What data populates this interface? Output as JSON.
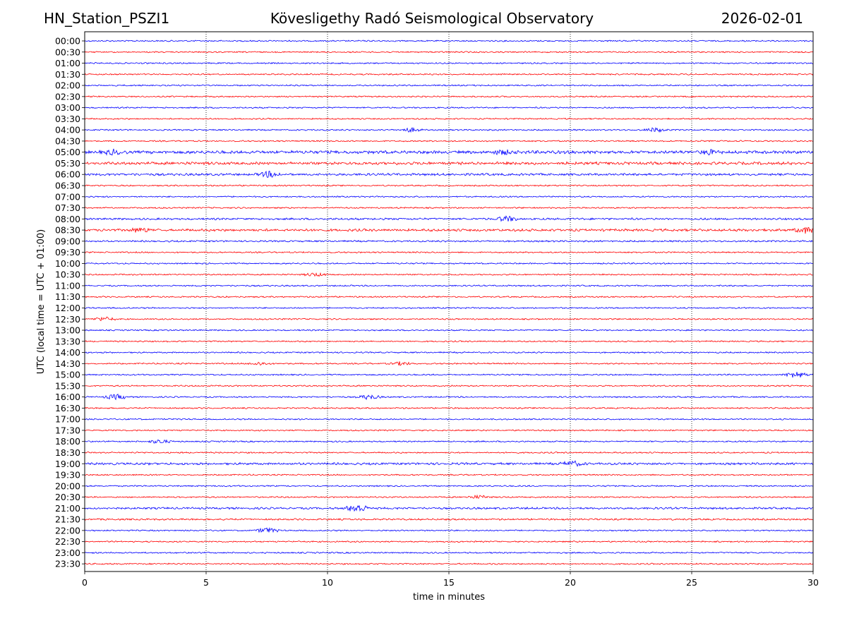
{
  "header": {
    "station": "HN_Station_PSZI1",
    "observatory": "Kövesligethy Radó Seismological Observatory",
    "date": "2026-02-01"
  },
  "chart_data": {
    "type": "line",
    "title": "Kövesligethy Radó Seismological Observatory",
    "xlabel": "time in minutes",
    "ylabel": "UTC (local time = UTC + 01:00)",
    "xlim": [
      0,
      30
    ],
    "x_ticks": [
      0,
      5,
      10,
      15,
      20,
      25,
      30
    ],
    "grid_x": true,
    "colors": [
      "#0000ff",
      "#ff0000"
    ],
    "rows": [
      "00:00",
      "00:30",
      "01:00",
      "01:30",
      "02:00",
      "02:30",
      "03:00",
      "03:30",
      "04:00",
      "04:30",
      "05:00",
      "05:30",
      "06:00",
      "06:30",
      "07:00",
      "07:30",
      "08:00",
      "08:30",
      "09:00",
      "09:30",
      "10:00",
      "10:30",
      "11:00",
      "11:30",
      "12:00",
      "12:30",
      "13:00",
      "13:30",
      "14:00",
      "14:30",
      "15:00",
      "15:30",
      "16:00",
      "16:30",
      "17:00",
      "17:30",
      "18:00",
      "18:30",
      "19:00",
      "19:30",
      "20:00",
      "20:30",
      "21:00",
      "21:30",
      "22:00",
      "22:30",
      "23:00",
      "23:30"
    ],
    "noise_level": [
      1,
      1,
      1,
      1,
      1,
      1,
      1,
      1,
      1,
      1,
      2.2,
      2,
      1.6,
      1,
      1,
      1,
      1.4,
      1.8,
      1.2,
      1,
      1,
      1,
      1,
      1,
      1,
      1,
      1,
      1,
      1,
      1,
      1,
      1,
      1,
      1,
      1,
      1,
      1,
      1,
      1.6,
      1,
      1,
      1,
      1.4,
      1.2,
      1,
      1,
      1,
      1
    ],
    "events": [
      {
        "row": "04:00",
        "minute": 13.4,
        "amplitude": 3
      },
      {
        "row": "04:00",
        "minute": 23.5,
        "amplitude": 3
      },
      {
        "row": "05:00",
        "minute": 1.2,
        "amplitude": 3
      },
      {
        "row": "05:00",
        "minute": 17.2,
        "amplitude": 3
      },
      {
        "row": "05:00",
        "minute": 25.7,
        "amplitude": 3
      },
      {
        "row": "06:00",
        "minute": 7.6,
        "amplitude": 4
      },
      {
        "row": "08:00",
        "minute": 17.4,
        "amplitude": 4
      },
      {
        "row": "08:30",
        "minute": 2.3,
        "amplitude": 3
      },
      {
        "row": "08:30",
        "minute": 29.7,
        "amplitude": 4
      },
      {
        "row": "10:30",
        "minute": 9.5,
        "amplitude": 2.5
      },
      {
        "row": "12:30",
        "minute": 0.8,
        "amplitude": 3
      },
      {
        "row": "14:30",
        "minute": 7.2,
        "amplitude": 2.5
      },
      {
        "row": "14:30",
        "minute": 13.0,
        "amplitude": 2.5
      },
      {
        "row": "15:00",
        "minute": 29.3,
        "amplitude": 5
      },
      {
        "row": "16:00",
        "minute": 1.3,
        "amplitude": 4
      },
      {
        "row": "16:00",
        "minute": 11.7,
        "amplitude": 3.5
      },
      {
        "row": "18:00",
        "minute": 3.1,
        "amplitude": 3
      },
      {
        "row": "19:00",
        "minute": 20.1,
        "amplitude": 3.5
      },
      {
        "row": "20:30",
        "minute": 16.2,
        "amplitude": 2.5
      },
      {
        "row": "21:00",
        "minute": 11.2,
        "amplitude": 7
      },
      {
        "row": "22:00",
        "minute": 7.5,
        "amplitude": 4
      }
    ]
  }
}
